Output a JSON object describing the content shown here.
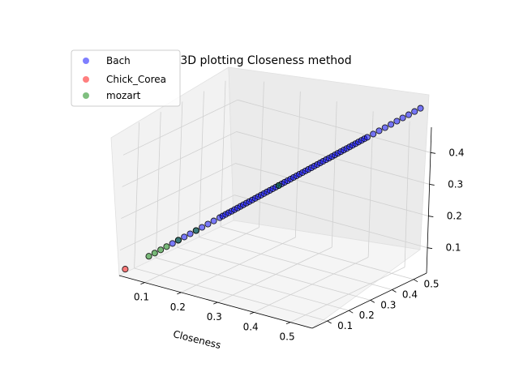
{
  "chart_data": {
    "type": "scatter",
    "title": "3D plotting Closeness method",
    "xlabel": "Closeness",
    "ylabel": "",
    "zlabel": "",
    "x_ticks": [
      "0.1",
      "0.2",
      "0.3",
      "0.4",
      "0.5"
    ],
    "y_ticks": [
      "0.1",
      "0.2",
      "0.3",
      "0.4",
      "0.5"
    ],
    "z_ticks": [
      "0.1",
      "0.2",
      "0.3",
      "0.4"
    ],
    "xlim": [
      0.03,
      0.56
    ],
    "ylim": [
      0.03,
      0.56
    ],
    "zlim": [
      0.02,
      0.48
    ],
    "grid": true,
    "legend_placement": "top-left",
    "series": [
      {
        "name": "Bach",
        "color": "#0000ff",
        "values": [
          0.12,
          0.13,
          0.14,
          0.15,
          0.16,
          0.17,
          0.18,
          0.19,
          0.2,
          0.205,
          0.21,
          0.215,
          0.22,
          0.225,
          0.23,
          0.235,
          0.24,
          0.245,
          0.25,
          0.255,
          0.26,
          0.265,
          0.27,
          0.275,
          0.28,
          0.285,
          0.29,
          0.295,
          0.3,
          0.305,
          0.31,
          0.315,
          0.32,
          0.325,
          0.33,
          0.335,
          0.34,
          0.345,
          0.35,
          0.355,
          0.36,
          0.365,
          0.37,
          0.375,
          0.38,
          0.385,
          0.39,
          0.395,
          0.4,
          0.405,
          0.41,
          0.415,
          0.42,
          0.425,
          0.43,
          0.435,
          0.44,
          0.445,
          0.45,
          0.46,
          0.47,
          0.48,
          0.49,
          0.5,
          0.51,
          0.52,
          0.53,
          0.54
        ]
      },
      {
        "name": "Chick_Corea",
        "color": "#ff0000",
        "values": [
          0.04
        ]
      },
      {
        "name": "mozart",
        "color": "#008000",
        "values": [
          0.08,
          0.09,
          0.1,
          0.11,
          0.13,
          0.16,
          0.3
        ]
      }
    ]
  }
}
